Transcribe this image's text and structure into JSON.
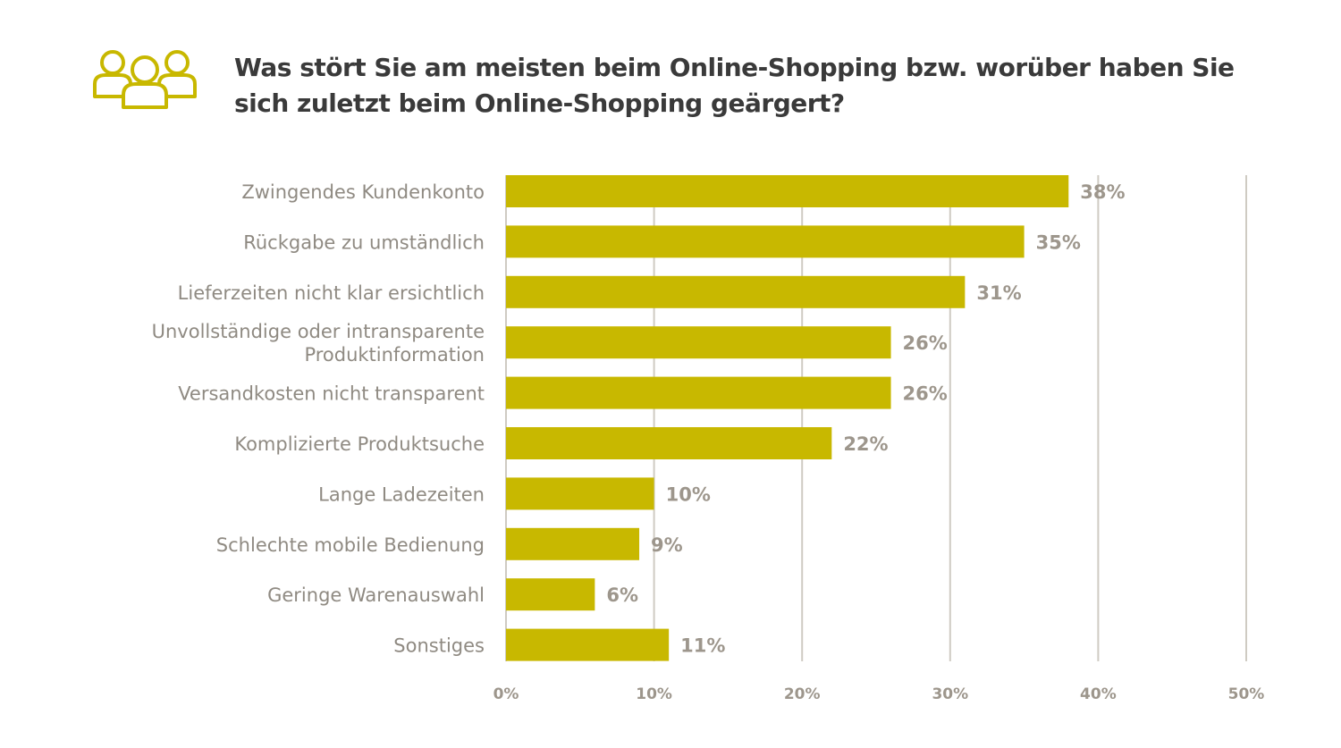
{
  "chart_data": {
    "type": "bar",
    "orientation": "horizontal",
    "title": "Was stört Sie am meisten beim Online-Shopping bzw. worüber haben Sie sich zuletzt beim Online-Shopping geärgert?",
    "categories": [
      [
        "Zwingendes Kundenkonto"
      ],
      [
        "Rückgabe zu umständlich"
      ],
      [
        "Lieferzeiten nicht klar ersichtlich"
      ],
      [
        "Unvollständige oder intransparente",
        "Produktinformation"
      ],
      [
        "Versandkosten nicht transparent"
      ],
      [
        "Komplizierte Produktsuche"
      ],
      [
        "Lange Ladezeiten"
      ],
      [
        "Schlechte mobile Bedienung"
      ],
      [
        "Geringe Warenauswahl"
      ],
      [
        "Sonstiges"
      ]
    ],
    "values": [
      38,
      35,
      31,
      26,
      26,
      22,
      10,
      9,
      6,
      11
    ],
    "value_labels": [
      "38%",
      "35%",
      "31%",
      "26%",
      "26%",
      "22%",
      "10%",
      "9%",
      "6%",
      "11%"
    ],
    "xlim": [
      0,
      50
    ],
    "ticks": [
      0,
      10,
      20,
      30,
      40,
      50
    ],
    "tick_labels": [
      "0%",
      "10%",
      "20%",
      "30%",
      "40%",
      "50%"
    ],
    "grid": "vertical",
    "xlabel": "",
    "ylabel": ""
  },
  "colors": {
    "bar": "#c8b800",
    "grid": "#cfcbc3",
    "icon": "#c8b800",
    "title": "#3a3a3a",
    "category_text": "#8f8a82",
    "value_text": "#9d968c"
  },
  "header_icon": "people-group-icon"
}
